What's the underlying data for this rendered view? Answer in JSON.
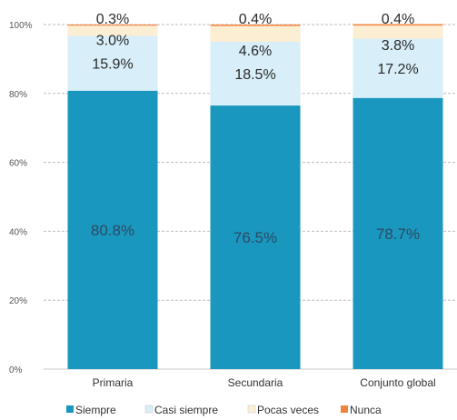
{
  "chart_data": {
    "type": "bar",
    "stacked": true,
    "title": "",
    "xlabel": "",
    "ylabel": "",
    "ylim": [
      0,
      100
    ],
    "y_ticks": [
      "0%",
      "20%",
      "40%",
      "60%",
      "80%",
      "100%"
    ],
    "y_tick_values": [
      0,
      20,
      40,
      60,
      80,
      100
    ],
    "grid": true,
    "legend_position": "bottom",
    "categories": [
      "Primaria",
      "Secundaria",
      "Conjunto global"
    ],
    "series": [
      {
        "name": "Siempre",
        "color": "#1a97bf",
        "values": [
          80.8,
          76.5,
          78.7
        ],
        "labels": [
          "80.8%",
          "76.5%",
          "78.7%"
        ]
      },
      {
        "name": "Casi siempre",
        "color": "#d8eef8",
        "values": [
          15.9,
          18.5,
          17.2
        ],
        "labels": [
          "15.9%",
          "18.5%",
          "17.2%"
        ]
      },
      {
        "name": "Pocas veces",
        "color": "#fbeed3",
        "values": [
          3.0,
          4.6,
          3.8
        ],
        "labels": [
          "3.0%",
          "4.6%",
          "3.8%"
        ]
      },
      {
        "name": "Nunca",
        "color": "#f1823b",
        "values": [
          0.3,
          0.4,
          0.4
        ],
        "labels": [
          "0.3%",
          "0.4%",
          "0.4%"
        ]
      }
    ]
  }
}
